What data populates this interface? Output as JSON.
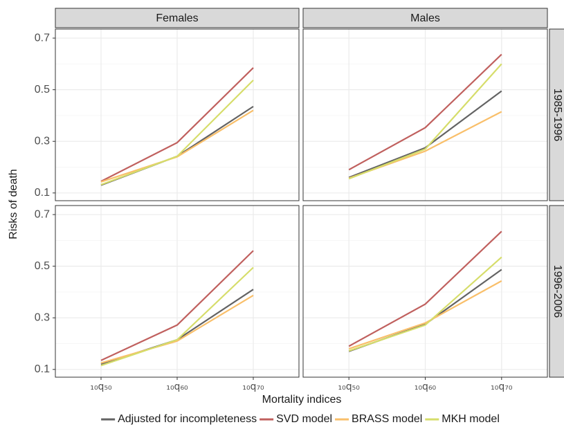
{
  "facets": {
    "columns": [
      "Females",
      "Males"
    ],
    "rows": [
      "1985-1996",
      "1996-2006"
    ]
  },
  "x_label": "Mortality indices",
  "y_label": "Risks of death",
  "chart_data": [
    {
      "type": "line",
      "categories": [
        "₁₀q₅₀",
        "₁₀q₆₀",
        "₁₀q₇₀"
      ],
      "ylim": [
        0.07,
        0.735
      ],
      "yticks": [
        0.1,
        0.3,
        0.5,
        0.7
      ],
      "grid": true,
      "series": [
        {
          "name": "Adjusted for incompleteness",
          "color": "#636363",
          "values": [
            0.13,
            0.242,
            0.435
          ]
        },
        {
          "name": "SVD model",
          "color": "#c0605e",
          "values": [
            0.145,
            0.295,
            0.585
          ]
        },
        {
          "name": "BRASS model",
          "color": "#f9bf6a",
          "values": [
            0.143,
            0.24,
            0.42
          ]
        },
        {
          "name": "MKH model",
          "color": "#d6dd6a",
          "values": [
            0.132,
            0.242,
            0.537
          ]
        }
      ]
    },
    {
      "type": "line",
      "categories": [
        "₁₀q₅₀",
        "₁₀q₆₀",
        "₁₀q₇₀"
      ],
      "ylim": [
        0.07,
        0.735
      ],
      "yticks": [
        0.1,
        0.3,
        0.5,
        0.7
      ],
      "grid": true,
      "series": [
        {
          "name": "Adjusted for incompleteness",
          "color": "#636363",
          "values": [
            0.16,
            0.275,
            0.495
          ]
        },
        {
          "name": "SVD model",
          "color": "#c0605e",
          "values": [
            0.19,
            0.353,
            0.637
          ]
        },
        {
          "name": "BRASS model",
          "color": "#f9bf6a",
          "values": [
            0.157,
            0.262,
            0.415
          ]
        },
        {
          "name": "MKH model",
          "color": "#d6dd6a",
          "values": [
            0.155,
            0.27,
            0.6
          ]
        }
      ]
    },
    {
      "type": "line",
      "categories": [
        "₁₀q₅₀",
        "₁₀q₆₀",
        "₁₀q₇₀"
      ],
      "ylim": [
        0.07,
        0.735
      ],
      "yticks": [
        0.1,
        0.3,
        0.5,
        0.7
      ],
      "grid": true,
      "series": [
        {
          "name": "Adjusted for incompleteness",
          "color": "#636363",
          "values": [
            0.12,
            0.215,
            0.41
          ]
        },
        {
          "name": "SVD model",
          "color": "#c0605e",
          "values": [
            0.135,
            0.272,
            0.56
          ]
        },
        {
          "name": "BRASS model",
          "color": "#f9bf6a",
          "values": [
            0.125,
            0.21,
            0.387
          ]
        },
        {
          "name": "MKH model",
          "color": "#d6dd6a",
          "values": [
            0.115,
            0.215,
            0.495
          ]
        }
      ]
    },
    {
      "type": "line",
      "categories": [
        "₁₀q₅₀",
        "₁₀q₆₀",
        "₁₀q₇₀"
      ],
      "ylim": [
        0.07,
        0.735
      ],
      "yticks": [
        0.1,
        0.3,
        0.5,
        0.7
      ],
      "grid": true,
      "series": [
        {
          "name": "Adjusted for incompleteness",
          "color": "#636363",
          "values": [
            0.17,
            0.275,
            0.487
          ]
        },
        {
          "name": "SVD model",
          "color": "#c0605e",
          "values": [
            0.19,
            0.353,
            0.635
          ]
        },
        {
          "name": "BRASS model",
          "color": "#f9bf6a",
          "values": [
            0.18,
            0.28,
            0.443
          ]
        },
        {
          "name": "MKH model",
          "color": "#d6dd6a",
          "values": [
            0.172,
            0.272,
            0.535
          ]
        }
      ]
    }
  ]
}
